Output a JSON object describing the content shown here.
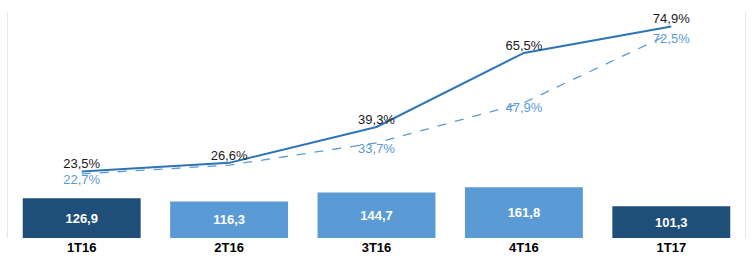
{
  "chart_data": {
    "type": "bar",
    "categories": [
      "1T16",
      "2T16",
      "3T16",
      "4T16",
      "1T17"
    ],
    "tick_labels": "x",
    "grid": false,
    "data_labels": true,
    "ylim": [
      0,
      720
    ],
    "y2lim": [
      0,
      80
    ],
    "series": [
      {
        "type": "bar",
        "colors": [
          "#1F4E79",
          "#5B9BD5",
          "#5B9BD5",
          "#5B9BD5",
          "#1F4E79"
        ],
        "values": [
          126.9,
          116.3,
          144.7,
          161.8,
          101.3
        ],
        "value_labels": [
          "126,9",
          "116,3",
          "144,7",
          "161,8",
          "101,3"
        ]
      },
      {
        "type": "line",
        "axis": "y2",
        "color": "#2E75B6",
        "line_style": "solid",
        "values": [
          23.5,
          26.6,
          39.3,
          65.5,
          74.9
        ],
        "value_labels": [
          "23,5%",
          "26,6%",
          "39,3%",
          "65,5%",
          "74,9%"
        ]
      },
      {
        "type": "line",
        "axis": "y2",
        "color": "#5B9BD5",
        "line_style": "dashed",
        "values": [
          22.7,
          25.8,
          33.7,
          47.9,
          72.5
        ],
        "value_labels": [
          "22,7%",
          null,
          "33,7%",
          "47,9%",
          "72,5%"
        ]
      }
    ]
  }
}
